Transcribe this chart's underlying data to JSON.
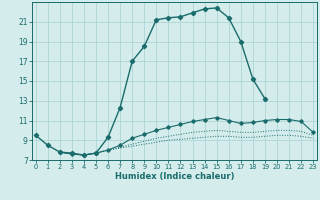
{
  "xlabel": "Humidex (Indice chaleur)",
  "bg_color": "#d4ecec",
  "grid_color": "#aed4d4",
  "line_color": "#1a6b6b",
  "x_values": [
    0,
    1,
    2,
    3,
    4,
    5,
    6,
    7,
    8,
    9,
    10,
    11,
    12,
    13,
    14,
    15,
    16,
    17,
    18,
    19,
    20,
    21,
    22,
    23
  ],
  "line1": [
    9.5,
    8.5,
    7.8,
    7.7,
    7.5,
    7.7,
    9.3,
    12.3,
    17.0,
    18.5,
    21.2,
    21.4,
    21.5,
    21.9,
    22.3,
    22.4,
    21.4,
    19.0,
    15.2,
    13.2,
    null,
    null,
    null,
    null
  ],
  "line2": [
    null,
    null,
    7.8,
    7.6,
    7.5,
    7.7,
    8.0,
    8.5,
    9.2,
    9.6,
    10.0,
    10.3,
    10.6,
    10.9,
    11.1,
    11.3,
    11.0,
    10.7,
    10.8,
    11.0,
    11.1,
    11.1,
    10.9,
    9.8
  ],
  "line3": [
    null,
    null,
    7.8,
    7.6,
    7.5,
    7.7,
    8.0,
    8.3,
    8.6,
    8.9,
    9.2,
    9.4,
    9.6,
    9.8,
    9.9,
    10.0,
    9.9,
    9.8,
    9.8,
    9.9,
    10.0,
    10.0,
    9.9,
    9.5
  ],
  "line4": [
    null,
    null,
    7.8,
    7.6,
    7.5,
    7.7,
    8.0,
    8.2,
    8.4,
    8.6,
    8.8,
    9.0,
    9.1,
    9.2,
    9.3,
    9.4,
    9.4,
    9.3,
    9.3,
    9.4,
    9.5,
    9.5,
    9.4,
    9.2
  ],
  "ylim": [
    7.0,
    23.0
  ],
  "xlim": [
    -0.3,
    23.3
  ],
  "yticks": [
    7,
    9,
    11,
    13,
    15,
    17,
    19,
    21
  ],
  "xticks": [
    0,
    1,
    2,
    3,
    4,
    5,
    6,
    7,
    8,
    9,
    10,
    11,
    12,
    13,
    14,
    15,
    16,
    17,
    18,
    19,
    20,
    21,
    22,
    23
  ]
}
